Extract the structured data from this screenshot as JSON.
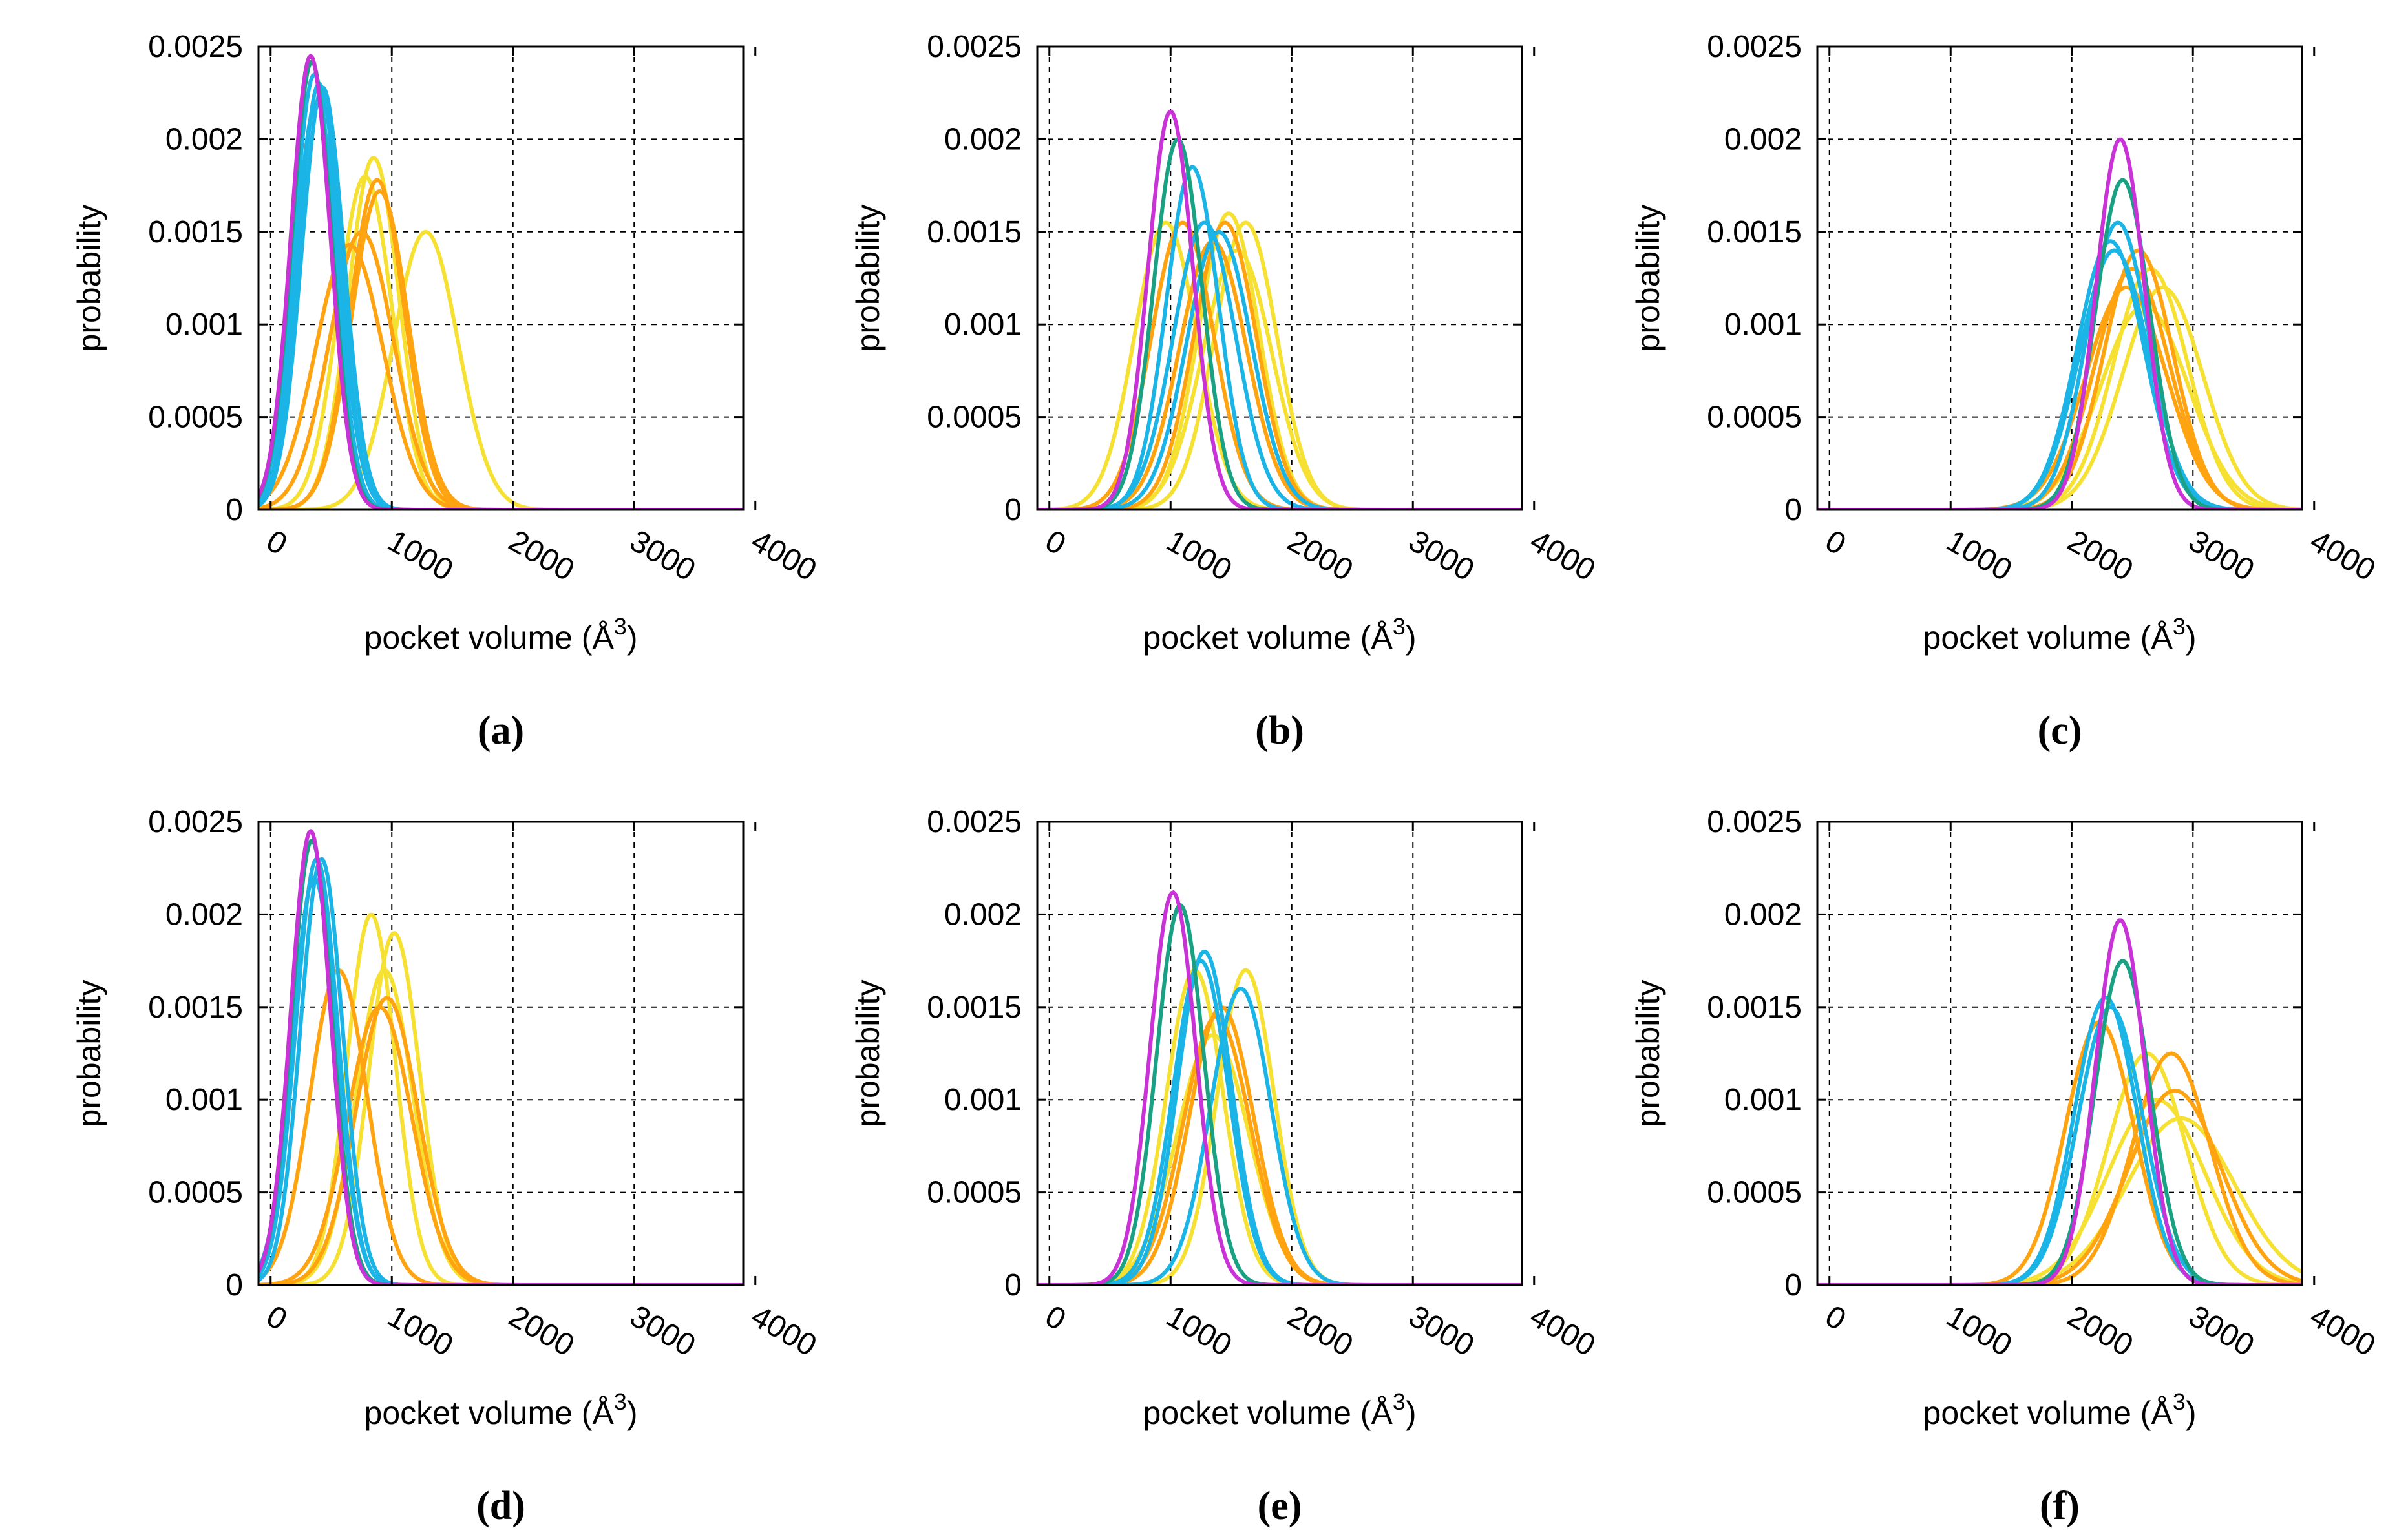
{
  "figure": {
    "series_colors": {
      "magenta": "#c832d6",
      "teal": "#1aa184",
      "cyan": "#1ab4e6",
      "orange": "#ffa310",
      "yellow": "#f6e132"
    },
    "panel_labels": [
      "(a)",
      "(b)",
      "(c)",
      "(d)",
      "(e)",
      "(f)"
    ]
  },
  "chart_data": [
    {
      "panel": "(a)",
      "type": "line",
      "xlabel": "pocket volume (Å",
      "xlabel_sup": "3",
      "xlabel_end": ")",
      "ylabel": "probability",
      "xlim": [
        -100,
        3900
      ],
      "ylim": [
        0,
        0.0025
      ],
      "xticks": [
        "0",
        "1000",
        "2000",
        "3000",
        "4000"
      ],
      "yticks": [
        "0",
        "0.0005",
        "0.001",
        "0.0015",
        "0.002",
        "0.0025"
      ],
      "grid": true,
      "series": [
        {
          "color": "magenta",
          "mean": 330,
          "peak": 0.00245
        },
        {
          "color": "teal",
          "mean": 340,
          "peak": 0.00242
        },
        {
          "color": "cyan",
          "mean": 360,
          "peak": 0.00235
        },
        {
          "color": "cyan",
          "mean": 400,
          "peak": 0.0023
        },
        {
          "color": "cyan",
          "mean": 430,
          "peak": 0.00228
        },
        {
          "color": "cyan",
          "mean": 380,
          "peak": 0.0022
        },
        {
          "color": "orange",
          "mean": 650,
          "peak": 0.00143
        },
        {
          "color": "orange",
          "mean": 880,
          "peak": 0.00178
        },
        {
          "color": "orange",
          "mean": 900,
          "peak": 0.00172
        },
        {
          "color": "orange",
          "mean": 750,
          "peak": 0.0015
        },
        {
          "color": "yellow",
          "mean": 850,
          "peak": 0.0019
        },
        {
          "color": "yellow",
          "mean": 780,
          "peak": 0.0018
        },
        {
          "color": "yellow",
          "mean": 1280,
          "peak": 0.0015
        }
      ]
    },
    {
      "panel": "(b)",
      "type": "line",
      "xlabel": "pocket volume (Å",
      "xlabel_sup": "3",
      "xlabel_end": ")",
      "ylabel": "probability",
      "xlim": [
        -100,
        3900
      ],
      "ylim": [
        0,
        0.0025
      ],
      "xticks": [
        "0",
        "1000",
        "2000",
        "3000",
        "4000"
      ],
      "yticks": [
        "0",
        "0.0005",
        "0.001",
        "0.0015",
        "0.002",
        "0.0025"
      ],
      "grid": true,
      "series": [
        {
          "color": "magenta",
          "mean": 1000,
          "peak": 0.00215
        },
        {
          "color": "teal",
          "mean": 1060,
          "peak": 0.002
        },
        {
          "color": "cyan",
          "mean": 1180,
          "peak": 0.00185
        },
        {
          "color": "cyan",
          "mean": 1280,
          "peak": 0.00155
        },
        {
          "color": "cyan",
          "mean": 1400,
          "peak": 0.0015
        },
        {
          "color": "orange",
          "mean": 1100,
          "peak": 0.00155
        },
        {
          "color": "orange",
          "mean": 1450,
          "peak": 0.00155
        },
        {
          "color": "orange",
          "mean": 1350,
          "peak": 0.00145
        },
        {
          "color": "yellow",
          "mean": 960,
          "peak": 0.00155
        },
        {
          "color": "yellow",
          "mean": 1480,
          "peak": 0.0016
        },
        {
          "color": "yellow",
          "mean": 1620,
          "peak": 0.00155
        },
        {
          "color": "yellow",
          "mean": 1550,
          "peak": 0.0014
        }
      ]
    },
    {
      "panel": "(c)",
      "type": "line",
      "xlabel": "pocket volume (Å",
      "xlabel_sup": "3",
      "xlabel_end": ")",
      "ylabel": "probability",
      "xlim": [
        -100,
        3900
      ],
      "ylim": [
        0,
        0.0025
      ],
      "xticks": [
        "0",
        "1000",
        "2000",
        "3000",
        "4000"
      ],
      "yticks": [
        "0",
        "0.0005",
        "0.001",
        "0.0015",
        "0.002",
        "0.0025"
      ],
      "grid": true,
      "series": [
        {
          "color": "magenta",
          "mean": 2400,
          "peak": 0.002
        },
        {
          "color": "teal",
          "mean": 2420,
          "peak": 0.00178
        },
        {
          "color": "cyan",
          "mean": 2320,
          "peak": 0.00145
        },
        {
          "color": "cyan",
          "mean": 2350,
          "peak": 0.0014
        },
        {
          "color": "cyan",
          "mean": 2380,
          "peak": 0.00155
        },
        {
          "color": "orange",
          "mean": 2500,
          "peak": 0.0013
        },
        {
          "color": "orange",
          "mean": 2550,
          "peak": 0.0014
        },
        {
          "color": "orange",
          "mean": 2450,
          "peak": 0.0012
        },
        {
          "color": "yellow",
          "mean": 2650,
          "peak": 0.0013
        },
        {
          "color": "yellow",
          "mean": 2750,
          "peak": 0.0012
        },
        {
          "color": "yellow",
          "mean": 2600,
          "peak": 0.0011
        }
      ]
    },
    {
      "panel": "(d)",
      "type": "line",
      "xlabel": "pocket volume (Å",
      "xlabel_sup": "3",
      "xlabel_end": ")",
      "ylabel": "probability",
      "xlim": [
        -100,
        3900
      ],
      "ylim": [
        0,
        0.0025
      ],
      "xticks": [
        "0",
        "1000",
        "2000",
        "3000",
        "4000"
      ],
      "yticks": [
        "0",
        "0.0005",
        "0.001",
        "0.0015",
        "0.002",
        "0.0025"
      ],
      "grid": true,
      "series": [
        {
          "color": "magenta",
          "mean": 330,
          "peak": 0.00245
        },
        {
          "color": "teal",
          "mean": 340,
          "peak": 0.0024
        },
        {
          "color": "cyan",
          "mean": 380,
          "peak": 0.0023
        },
        {
          "color": "cyan",
          "mean": 420,
          "peak": 0.0023
        },
        {
          "color": "cyan",
          "mean": 360,
          "peak": 0.0022
        },
        {
          "color": "orange",
          "mean": 560,
          "peak": 0.0017
        },
        {
          "color": "orange",
          "mean": 960,
          "peak": 0.00155
        },
        {
          "color": "orange",
          "mean": 900,
          "peak": 0.0015
        },
        {
          "color": "yellow",
          "mean": 830,
          "peak": 0.002
        },
        {
          "color": "yellow",
          "mean": 1020,
          "peak": 0.0019
        },
        {
          "color": "yellow",
          "mean": 940,
          "peak": 0.0017
        }
      ]
    },
    {
      "panel": "(e)",
      "type": "line",
      "xlabel": "pocket volume (Å",
      "xlabel_sup": "3",
      "xlabel_end": ")",
      "ylabel": "probability",
      "xlim": [
        -100,
        3900
      ],
      "ylim": [
        0,
        0.0025
      ],
      "xticks": [
        "0",
        "1000",
        "2000",
        "3000",
        "4000"
      ],
      "yticks": [
        "0",
        "0.0005",
        "0.001",
        "0.0015",
        "0.002",
        "0.0025"
      ],
      "grid": true,
      "series": [
        {
          "color": "magenta",
          "mean": 1020,
          "peak": 0.00212
        },
        {
          "color": "teal",
          "mean": 1080,
          "peak": 0.00205
        },
        {
          "color": "cyan",
          "mean": 1280,
          "peak": 0.0018
        },
        {
          "color": "cyan",
          "mean": 1250,
          "peak": 0.00175
        },
        {
          "color": "cyan",
          "mean": 1580,
          "peak": 0.0016
        },
        {
          "color": "orange",
          "mean": 1420,
          "peak": 0.0015
        },
        {
          "color": "orange",
          "mean": 1380,
          "peak": 0.00145
        },
        {
          "color": "yellow",
          "mean": 1200,
          "peak": 0.0017
        },
        {
          "color": "yellow",
          "mean": 1620,
          "peak": 0.0017
        },
        {
          "color": "yellow",
          "mean": 1350,
          "peak": 0.00135
        }
      ]
    },
    {
      "panel": "(f)",
      "type": "line",
      "xlabel": "pocket volume (Å",
      "xlabel_sup": "3",
      "xlabel_end": ")",
      "ylabel": "probability",
      "xlim": [
        -100,
        3900
      ],
      "ylim": [
        0,
        0.0025
      ],
      "xticks": [
        "0",
        "1000",
        "2000",
        "3000",
        "4000"
      ],
      "yticks": [
        "0",
        "0.0005",
        "0.001",
        "0.0015",
        "0.002",
        "0.0025"
      ],
      "grid": true,
      "series": [
        {
          "color": "magenta",
          "mean": 2400,
          "peak": 0.00197
        },
        {
          "color": "teal",
          "mean": 2420,
          "peak": 0.00175
        },
        {
          "color": "cyan",
          "mean": 2280,
          "peak": 0.00155
        },
        {
          "color": "cyan",
          "mean": 2320,
          "peak": 0.0015
        },
        {
          "color": "orange",
          "mean": 2230,
          "peak": 0.00142
        },
        {
          "color": "orange",
          "mean": 2820,
          "peak": 0.00125
        },
        {
          "color": "orange",
          "mean": 2850,
          "peak": 0.00105
        },
        {
          "color": "yellow",
          "mean": 2620,
          "peak": 0.00125
        },
        {
          "color": "yellow",
          "mean": 2700,
          "peak": 0.001
        },
        {
          "color": "yellow",
          "mean": 2900,
          "peak": 0.0009
        }
      ]
    }
  ]
}
